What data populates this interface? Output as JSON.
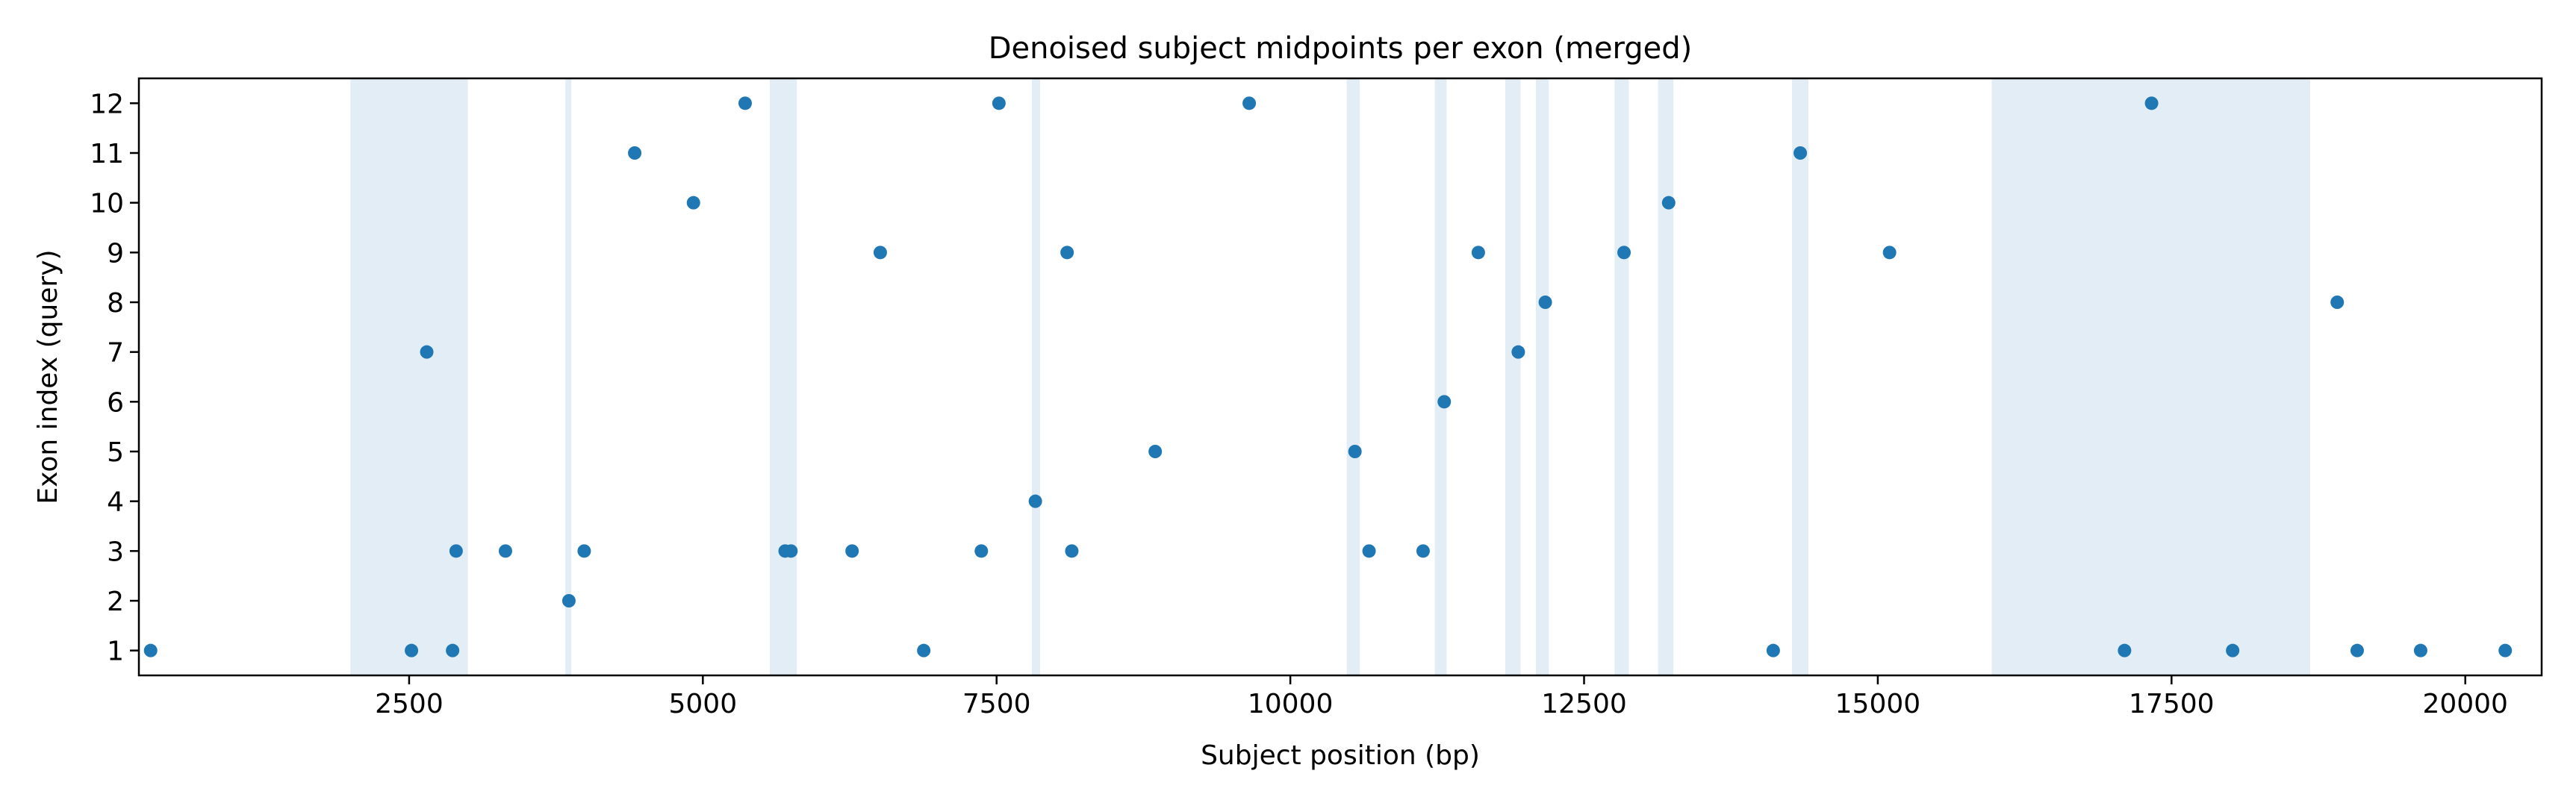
{
  "chart_data": {
    "type": "scatter",
    "title": "Denoised subject midpoints per exon (merged)",
    "xlabel": "Subject position (bp)",
    "ylabel": "Exon index (query)",
    "xlim": [
      200,
      20650
    ],
    "ylim": [
      0.5,
      12.5
    ],
    "xticks": [
      2500,
      5000,
      7500,
      10000,
      12500,
      15000,
      17500,
      20000
    ],
    "yticks": [
      1,
      2,
      3,
      4,
      5,
      6,
      7,
      8,
      9,
      10,
      11,
      12
    ],
    "grid": false,
    "point_color": "#1f77b4",
    "band_color": "#e2edf5",
    "shaded_regions": [
      [
        2000,
        3000
      ],
      [
        3830,
        3880
      ],
      [
        5570,
        5800
      ],
      [
        7800,
        7870
      ],
      [
        10480,
        10590
      ],
      [
        11230,
        11330
      ],
      [
        11830,
        11960
      ],
      [
        12090,
        12200
      ],
      [
        12760,
        12880
      ],
      [
        13130,
        13260
      ],
      [
        14270,
        14410
      ],
      [
        15970,
        18680
      ]
    ],
    "points": [
      {
        "x": 300,
        "y": 1
      },
      {
        "x": 2520,
        "y": 1
      },
      {
        "x": 2870,
        "y": 1
      },
      {
        "x": 6880,
        "y": 1
      },
      {
        "x": 14110,
        "y": 1
      },
      {
        "x": 17100,
        "y": 1
      },
      {
        "x": 18020,
        "y": 1
      },
      {
        "x": 19080,
        "y": 1
      },
      {
        "x": 19620,
        "y": 1
      },
      {
        "x": 20340,
        "y": 1
      },
      {
        "x": 3860,
        "y": 2
      },
      {
        "x": 2900,
        "y": 3
      },
      {
        "x": 3320,
        "y": 3
      },
      {
        "x": 3990,
        "y": 3
      },
      {
        "x": 5700,
        "y": 3
      },
      {
        "x": 5750,
        "y": 3
      },
      {
        "x": 6270,
        "y": 3
      },
      {
        "x": 7370,
        "y": 3
      },
      {
        "x": 8140,
        "y": 3
      },
      {
        "x": 10670,
        "y": 3
      },
      {
        "x": 11130,
        "y": 3
      },
      {
        "x": 7830,
        "y": 4
      },
      {
        "x": 8850,
        "y": 5
      },
      {
        "x": 10550,
        "y": 5
      },
      {
        "x": 11310,
        "y": 6
      },
      {
        "x": 11940,
        "y": 7
      },
      {
        "x": 2650,
        "y": 7
      },
      {
        "x": 12170,
        "y": 8
      },
      {
        "x": 18910,
        "y": 8
      },
      {
        "x": 6510,
        "y": 9
      },
      {
        "x": 8100,
        "y": 9
      },
      {
        "x": 11600,
        "y": 9
      },
      {
        "x": 12840,
        "y": 9
      },
      {
        "x": 15100,
        "y": 9
      },
      {
        "x": 4920,
        "y": 10
      },
      {
        "x": 13220,
        "y": 10
      },
      {
        "x": 4420,
        "y": 11
      },
      {
        "x": 14340,
        "y": 11
      },
      {
        "x": 5360,
        "y": 12
      },
      {
        "x": 7520,
        "y": 12
      },
      {
        "x": 9650,
        "y": 12
      },
      {
        "x": 17330,
        "y": 12
      }
    ]
  }
}
